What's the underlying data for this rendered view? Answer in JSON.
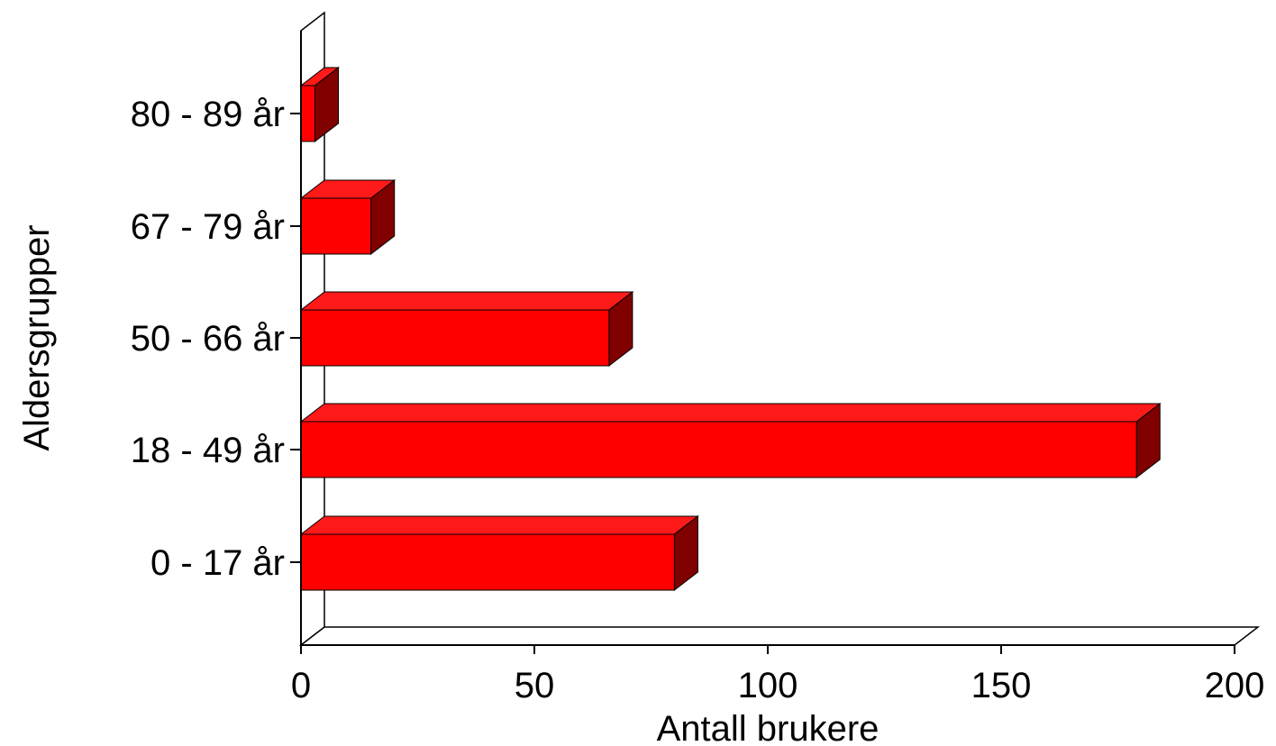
{
  "chart_data": {
    "type": "bar",
    "orientation": "horizontal",
    "style": "3d",
    "categories": [
      "0 - 17 år",
      "18 - 49 år",
      "50 - 66 år",
      "67 - 79 år",
      "80 - 89 år"
    ],
    "values": [
      80,
      179,
      66,
      15,
      3
    ],
    "xlabel": "Antall brukere",
    "ylabel": "Aldersgrupper",
    "xlim": [
      0,
      200
    ],
    "xticks": [
      0,
      50,
      100,
      150,
      200
    ],
    "grid": false,
    "legend": false,
    "colors": {
      "bar_front": "#ff0000",
      "bar_top": "#ff1a1a",
      "bar_side": "#800000",
      "outline": "#000000",
      "axis": "#000000"
    }
  }
}
